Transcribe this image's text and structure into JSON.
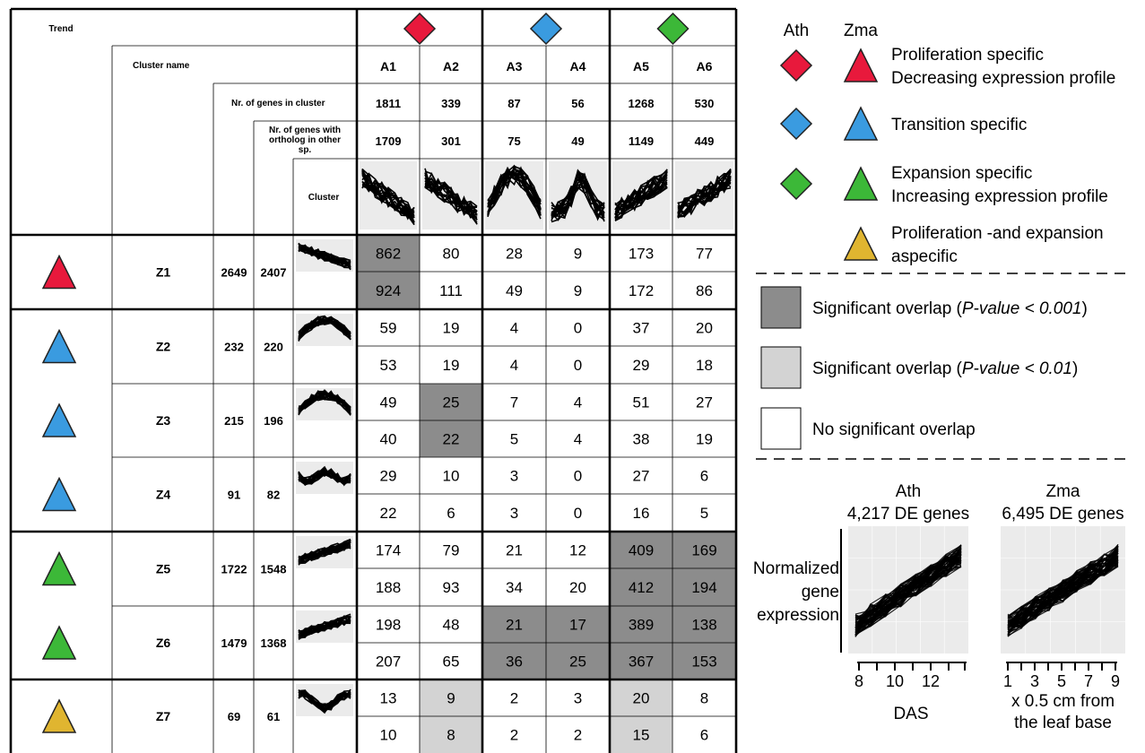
{
  "header": {
    "trend": "Trend",
    "cluster_name": "Cluster name",
    "nr_genes": "Nr. of genes in cluster",
    "nr_ortholog_lines": [
      "Nr. of genes with",
      "ortholog in other",
      "sp."
    ],
    "cluster": "Cluster"
  },
  "columns": [
    {
      "name": "A1",
      "genes": "1811",
      "orthologs": "1709",
      "trend": "proliferation"
    },
    {
      "name": "A2",
      "genes": "339",
      "orthologs": "301",
      "trend": "proliferation"
    },
    {
      "name": "A3",
      "genes": "87",
      "orthologs": "75",
      "trend": "transition"
    },
    {
      "name": "A4",
      "genes": "56",
      "orthologs": "49",
      "trend": "transition"
    },
    {
      "name": "A5",
      "genes": "1268",
      "orthologs": "1149",
      "trend": "expansion"
    },
    {
      "name": "A6",
      "genes": "530",
      "orthologs": "449",
      "trend": "expansion"
    }
  ],
  "rows": [
    {
      "name": "Z1",
      "genes": "2649",
      "orthologs": "2407",
      "trend": "proliferation",
      "values": [
        [
          "862",
          "80",
          "28",
          "9",
          "173",
          "77"
        ],
        [
          "924",
          "111",
          "49",
          "9",
          "172",
          "86"
        ]
      ],
      "shading": [
        [
          "dark",
          "none",
          "none",
          "none",
          "none",
          "none"
        ],
        [
          "dark",
          "none",
          "none",
          "none",
          "none",
          "none"
        ]
      ]
    },
    {
      "name": "Z2",
      "genes": "232",
      "orthologs": "220",
      "trend": "transition",
      "values": [
        [
          "59",
          "19",
          "4",
          "0",
          "37",
          "20"
        ],
        [
          "53",
          "19",
          "4",
          "0",
          "29",
          "18"
        ]
      ],
      "shading": [
        [
          "none",
          "none",
          "none",
          "none",
          "none",
          "none"
        ],
        [
          "none",
          "none",
          "none",
          "none",
          "none",
          "none"
        ]
      ]
    },
    {
      "name": "Z3",
      "genes": "215",
      "orthologs": "196",
      "trend": "transition",
      "values": [
        [
          "49",
          "25",
          "7",
          "4",
          "51",
          "27"
        ],
        [
          "40",
          "22",
          "5",
          "4",
          "38",
          "19"
        ]
      ],
      "shading": [
        [
          "none",
          "dark",
          "none",
          "none",
          "none",
          "none"
        ],
        [
          "none",
          "dark",
          "none",
          "none",
          "none",
          "none"
        ]
      ]
    },
    {
      "name": "Z4",
      "genes": "91",
      "orthologs": "82",
      "trend": "transition",
      "values": [
        [
          "29",
          "10",
          "3",
          "0",
          "27",
          "6"
        ],
        [
          "22",
          "6",
          "3",
          "0",
          "16",
          "5"
        ]
      ],
      "shading": [
        [
          "none",
          "none",
          "none",
          "none",
          "none",
          "none"
        ],
        [
          "none",
          "none",
          "none",
          "none",
          "none",
          "none"
        ]
      ]
    },
    {
      "name": "Z5",
      "genes": "1722",
      "orthologs": "1548",
      "trend": "expansion",
      "values": [
        [
          "174",
          "79",
          "21",
          "12",
          "409",
          "169"
        ],
        [
          "188",
          "93",
          "34",
          "20",
          "412",
          "194"
        ]
      ],
      "shading": [
        [
          "none",
          "none",
          "none",
          "none",
          "dark",
          "dark"
        ],
        [
          "none",
          "none",
          "none",
          "none",
          "dark",
          "dark"
        ]
      ]
    },
    {
      "name": "Z6",
      "genes": "1479",
      "orthologs": "1368",
      "trend": "expansion",
      "values": [
        [
          "198",
          "48",
          "21",
          "17",
          "389",
          "138"
        ],
        [
          "207",
          "65",
          "36",
          "25",
          "367",
          "153"
        ]
      ],
      "shading": [
        [
          "none",
          "none",
          "dark",
          "dark",
          "dark",
          "dark"
        ],
        [
          "none",
          "none",
          "dark",
          "dark",
          "dark",
          "dark"
        ]
      ]
    },
    {
      "name": "Z7",
      "genes": "69",
      "orthologs": "61",
      "trend": "aspecific",
      "values": [
        [
          "13",
          "9",
          "2",
          "3",
          "20",
          "8"
        ],
        [
          "10",
          "8",
          "2",
          "2",
          "15",
          "6"
        ]
      ],
      "shading": [
        [
          "none",
          "light",
          "none",
          "none",
          "light",
          "none"
        ],
        [
          "none",
          "light",
          "none",
          "none",
          "light",
          "none"
        ]
      ]
    }
  ],
  "legend": {
    "ath_label": "Ath",
    "zma_label": "Zma",
    "items": [
      {
        "key": "proliferation",
        "lines": [
          "Proliferation specific",
          "Decreasing expression profile"
        ]
      },
      {
        "key": "transition",
        "lines": [
          "Transition specific"
        ]
      },
      {
        "key": "expansion",
        "lines": [
          "Expansion specific",
          "Increasing expression profile"
        ]
      },
      {
        "key": "aspecific",
        "lines": [
          "Proliferation -and expansion",
          "aspecific"
        ]
      }
    ],
    "overlap": [
      {
        "key": "dark",
        "text": "Significant overlap (",
        "italic": "P-value < 0.001",
        "close": ")"
      },
      {
        "key": "light",
        "text": "Significant overlap (",
        "italic": "P-value < 0.01",
        "close": ")"
      },
      {
        "key": "none",
        "text": "No significant overlap",
        "italic": "",
        "close": ""
      }
    ]
  },
  "profile_plots": {
    "ylabel_lines": [
      "Normalized",
      "gene",
      "expression"
    ],
    "panels": [
      {
        "title": "Ath",
        "subtitle": "4,217 DE genes",
        "tick_labels": [
          "8",
          "10",
          "12"
        ],
        "xlabel_lines": [
          "DAS"
        ]
      },
      {
        "title": "Zma",
        "subtitle": "6,495 DE genes",
        "tick_labels": [
          "1",
          "3",
          "5",
          "7",
          "9"
        ],
        "xlabel_lines": [
          "x 0.5 cm from",
          "the leaf base"
        ]
      }
    ]
  },
  "colors": {
    "proliferation": "#e8193c",
    "transition": "#3a9be0",
    "expansion": "#3cb838",
    "aspecific": "#e0b530",
    "dark": "#8c8c8c",
    "light": "#d3d3d3",
    "none": "#ffffff",
    "plot_bg": "#ebebeb"
  }
}
